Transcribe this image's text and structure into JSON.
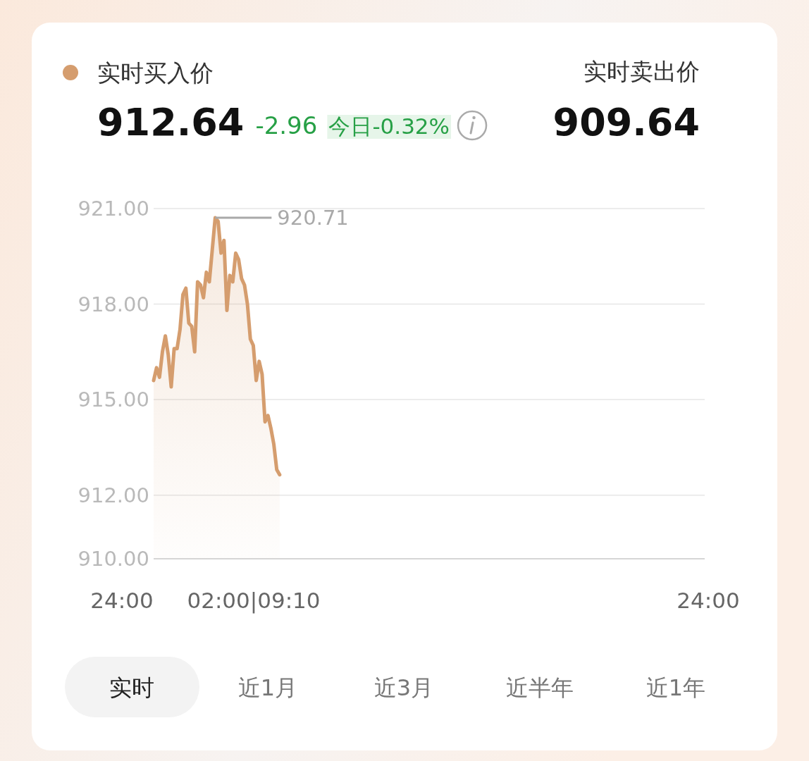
{
  "chart_data": {
    "type": "area",
    "categories": [
      null,
      null,
      null,
      null,
      null,
      null,
      null,
      null,
      null,
      null,
      null,
      null,
      null,
      null,
      null,
      null,
      null,
      null,
      null,
      null,
      null,
      null,
      null,
      null,
      null,
      null,
      null,
      null,
      null,
      null,
      null,
      null,
      null,
      null,
      null,
      null,
      null,
      null,
      null,
      null,
      null,
      null,
      null,
      null,
      null,
      null,
      null,
      null,
      null,
      null,
      null,
      null,
      null,
      null,
      null,
      null,
      null,
      null,
      null,
      null,
      null,
      null,
      null,
      null,
      null,
      null,
      null,
      null,
      null,
      null,
      null,
      null,
      null,
      null,
      null,
      null,
      null,
      null,
      null,
      null,
      null,
      null,
      null,
      null,
      null,
      null,
      null,
      null,
      null,
      null,
      null,
      null,
      null,
      null,
      null,
      null,
      null,
      null,
      null,
      null,
      null,
      null,
      null,
      null,
      null,
      null,
      null,
      null,
      null,
      null,
      null,
      null,
      null,
      null,
      null,
      null,
      null,
      null,
      null,
      null,
      null,
      null,
      null,
      null,
      null,
      null,
      null,
      null,
      null,
      null,
      null,
      null,
      null,
      null,
      null,
      null,
      null,
      null,
      null,
      null,
      null,
      null,
      null,
      null,
      null,
      null,
      null,
      null,
      null,
      null,
      null,
      null,
      null,
      null,
      null,
      null,
      null,
      null,
      null,
      null,
      null,
      null,
      null,
      null,
      null,
      null,
      null,
      null,
      null,
      null,
      null,
      null,
      null,
      null,
      null,
      null,
      null,
      null,
      null,
      null,
      null,
      null,
      null,
      null,
      null,
      null,
      null,
      null,
      null
    ],
    "series": [
      {
        "name": "实时买入价",
        "color": "#d59d6e",
        "values": [
          915.6,
          916.0,
          915.7,
          916.5,
          917.0,
          916.4,
          915.4,
          916.6,
          916.6,
          917.2,
          918.3,
          918.5,
          917.4,
          917.3,
          916.5,
          918.7,
          918.6,
          918.2,
          919.0,
          918.7,
          919.7,
          920.71,
          920.6,
          919.6,
          920.0,
          917.8,
          918.9,
          918.7,
          919.6,
          919.4,
          918.8,
          918.6,
          918.0,
          916.9,
          916.7,
          915.6,
          916.2,
          915.8,
          914.3,
          914.5,
          914.1,
          913.6,
          912.8,
          912.64,
          null,
          null,
          null,
          null,
          null,
          null,
          null,
          null,
          null,
          null,
          null,
          null,
          null,
          null,
          null,
          null,
          null,
          null,
          null,
          null,
          null,
          null,
          null,
          null,
          null,
          null,
          null,
          null,
          null,
          null,
          null,
          null,
          null,
          null,
          null,
          null,
          null,
          null,
          null,
          null,
          null,
          null,
          null,
          null,
          null,
          null,
          null,
          null,
          null,
          null,
          null,
          null,
          null,
          null,
          null,
          null,
          null,
          null,
          null,
          null,
          null,
          null,
          null,
          null,
          null,
          null,
          null,
          null,
          null,
          null,
          null,
          null,
          null,
          null,
          null,
          null,
          null,
          null,
          null,
          null,
          null,
          null,
          null,
          null,
          null,
          null,
          null,
          null,
          null,
          null,
          null,
          null,
          null,
          null,
          null,
          null,
          null,
          null,
          null,
          null,
          null,
          null,
          null,
          null,
          null,
          null,
          null,
          null,
          null,
          null,
          null,
          null,
          null,
          null,
          null,
          null,
          null,
          null,
          null,
          null,
          null,
          null,
          null,
          null,
          null,
          null,
          null,
          null,
          null,
          null,
          null,
          null,
          null,
          null,
          null,
          null,
          null,
          null,
          null,
          null,
          null,
          null,
          null,
          null,
          null
        ]
      }
    ],
    "ylim": [
      910,
      921
    ],
    "yticks": [
      {
        "value": 910,
        "label": "910.00"
      },
      {
        "value": 912,
        "label": "912.00"
      },
      {
        "value": 915,
        "label": "915.00"
      },
      {
        "value": 918,
        "label": "918.00"
      },
      {
        "value": 921,
        "label": "921.00"
      }
    ],
    "grid": "y",
    "legend": "top left",
    "marker": "none",
    "line_style": "solid",
    "annotations": [
      "912.64",
      "-2.96",
      "今日-0.32%",
      "实时卖出价",
      "909.64",
      "920.71",
      "24:00",
      "02:00|09:10",
      "24:00",
      "实时",
      "近1月",
      "近3月",
      "近半年",
      "近1年"
    ]
  }
}
